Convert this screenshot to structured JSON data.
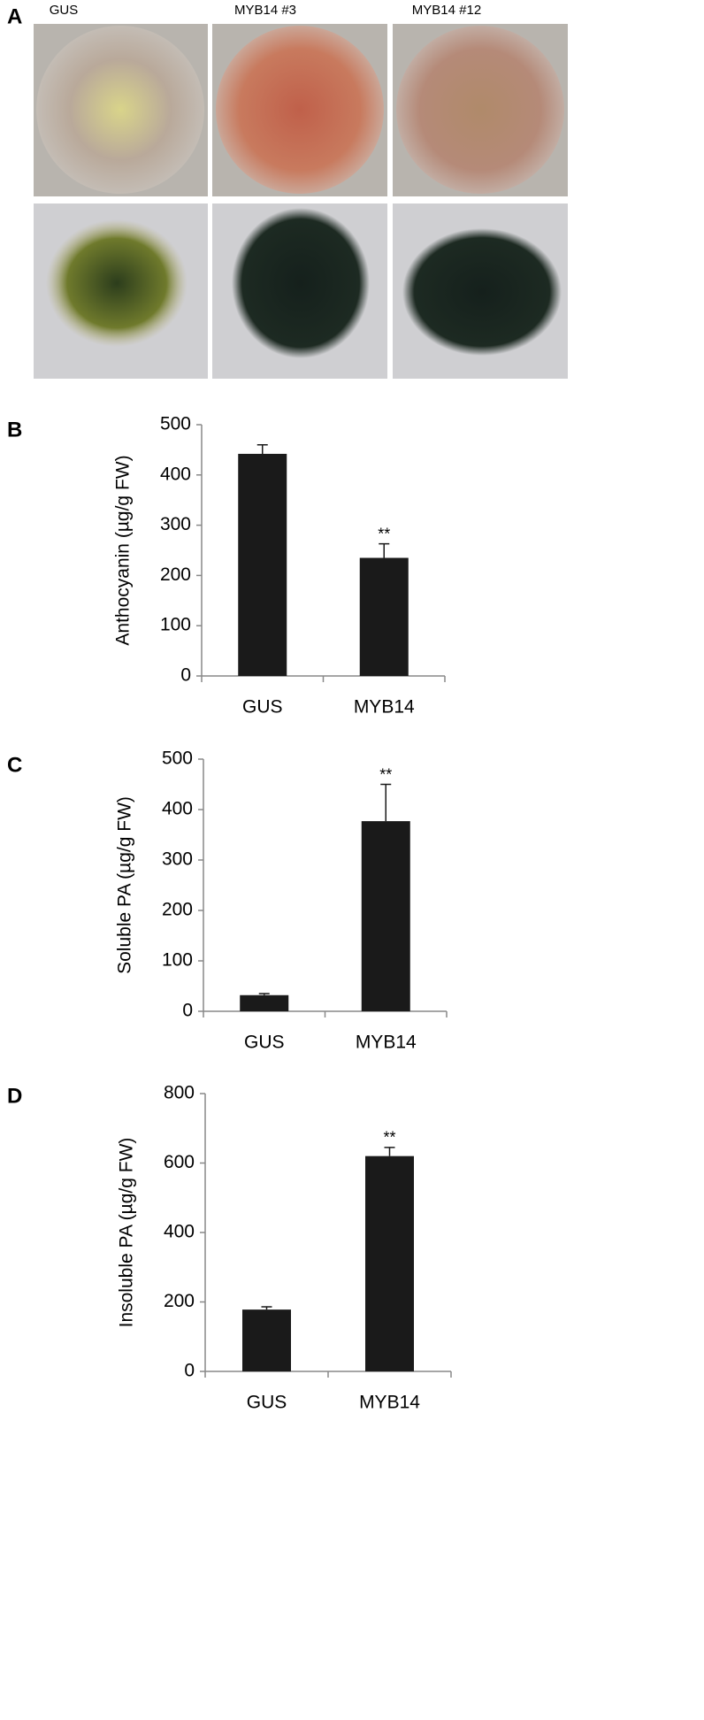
{
  "panel_a": {
    "label": "A",
    "columns": [
      "GUS",
      "MYB14 #3",
      "MYB14 #12"
    ]
  },
  "chart_data": [
    {
      "type": "bar",
      "label": "B",
      "ylabel": "Anthocyanin (µg/g FW)",
      "categories": [
        "GUS",
        "MYB14"
      ],
      "values": [
        442,
        235
      ],
      "errors": [
        18,
        28
      ],
      "significance": [
        null,
        "**"
      ],
      "color": "#1a1a1a",
      "ylim": [
        0,
        500
      ],
      "yticks": [
        0,
        100,
        200,
        300,
        400,
        500
      ]
    },
    {
      "type": "bar",
      "label": "C",
      "ylabel": "Soluble PA (µg/g FW)",
      "categories": [
        "GUS",
        "MYB14"
      ],
      "values": [
        32,
        377
      ],
      "errors": [
        3,
        73
      ],
      "significance": [
        null,
        "**"
      ],
      "color": "#1a1a1a",
      "ylim": [
        0,
        500
      ],
      "yticks": [
        0,
        100,
        200,
        300,
        400,
        500
      ]
    },
    {
      "type": "bar",
      "label": "D",
      "ylabel": "Insoluble PA (µg/g FW)",
      "categories": [
        "GUS",
        "MYB14"
      ],
      "values": [
        178,
        620
      ],
      "errors": [
        8,
        25
      ],
      "significance": [
        null,
        "**"
      ],
      "color": "#1a1a1a",
      "ylim": [
        0,
        800
      ],
      "yticks": [
        0,
        200,
        400,
        600,
        800
      ]
    }
  ]
}
